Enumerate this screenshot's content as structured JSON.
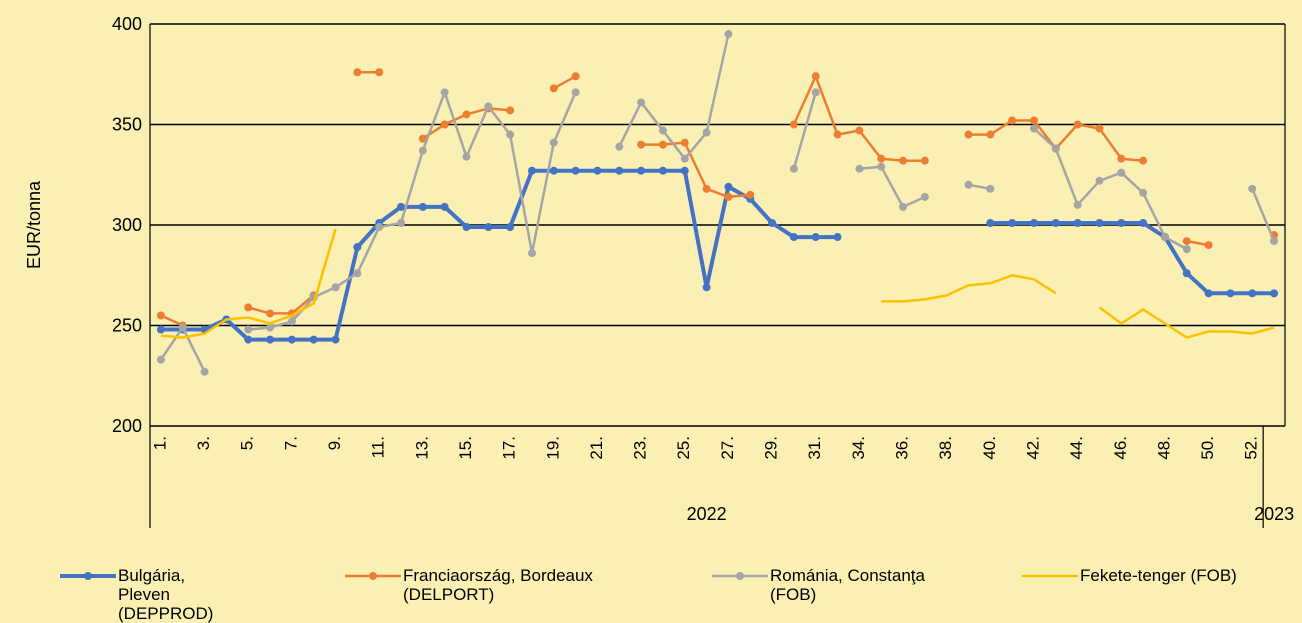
{
  "chart_data": {
    "type": "line",
    "y_label": "EUR/tonna",
    "categories": [
      "1.",
      null,
      "3.",
      null,
      "5.",
      null,
      "7.",
      null,
      "9.",
      null,
      "11.",
      null,
      "13.",
      null,
      "15.",
      null,
      "17.",
      null,
      "19.",
      null,
      "21.",
      null,
      "23.",
      null,
      "25.",
      null,
      "27.",
      null,
      "29.",
      null,
      "31.",
      null,
      "34.",
      null,
      "36.",
      null,
      "38.",
      null,
      "40.",
      null,
      "42.",
      null,
      "44.",
      null,
      "46.",
      null,
      "48.",
      null,
      "50.",
      null,
      "52.",
      null
    ],
    "groups": [
      {
        "label": "2022",
        "span": 51
      },
      {
        "label": "2023",
        "span": 1
      }
    ],
    "ylim": [
      200,
      400
    ],
    "yticks": [
      200,
      250,
      300,
      350,
      400
    ],
    "grid": true,
    "series": [
      {
        "name": "Bulgária, Pleven (DEPPROD)",
        "color": "#4472c4",
        "marker": true,
        "width": 4,
        "values": [
          248,
          248,
          248,
          253,
          243,
          243,
          243,
          243,
          243,
          289,
          301,
          309,
          309,
          309,
          299,
          299,
          299,
          327,
          327,
          327,
          327,
          327,
          327,
          327,
          327,
          269,
          319,
          313,
          301,
          294,
          294,
          294,
          null,
          null,
          null,
          null,
          null,
          null,
          301,
          301,
          301,
          301,
          301,
          301,
          301,
          301,
          294,
          276,
          266,
          266,
          266,
          266
        ]
      },
      {
        "name": "Franciaország, Bordeaux (DELPORT)",
        "color": "#ed7d31",
        "marker": true,
        "width": 2.5,
        "values": [
          255,
          250,
          null,
          null,
          259,
          256,
          256,
          265,
          null,
          376,
          376,
          null,
          343,
          350,
          355,
          358,
          357,
          null,
          368,
          374,
          null,
          null,
          340,
          340,
          341,
          318,
          314,
          315,
          null,
          350,
          374,
          345,
          347,
          333,
          332,
          332,
          null,
          345,
          345,
          352,
          352,
          338,
          350,
          348,
          333,
          332,
          null,
          292,
          290,
          null,
          null,
          295
        ]
      },
      {
        "name": "Románia, Constanţa (FOB)",
        "color": "#a5a5a5",
        "marker": true,
        "width": 2.5,
        "values": [
          233,
          249,
          227,
          null,
          248,
          249,
          252,
          264,
          269,
          276,
          299,
          301,
          337,
          366,
          334,
          359,
          345,
          286,
          341,
          366,
          null,
          339,
          361,
          347,
          333,
          346,
          395,
          null,
          null,
          328,
          366,
          null,
          328,
          329,
          309,
          314,
          null,
          320,
          318,
          null,
          348,
          338,
          310,
          322,
          326,
          316,
          294,
          288,
          null,
          null,
          318,
          292
        ]
      },
      {
        "name": "Fekete-tenger (FOB)",
        "color": "#ffc000",
        "marker": false,
        "width": 2.5,
        "values": [
          245,
          244,
          246,
          253,
          254,
          251,
          255,
          261,
          298,
          null,
          null,
          null,
          null,
          null,
          null,
          null,
          null,
          null,
          null,
          null,
          null,
          null,
          null,
          null,
          null,
          null,
          null,
          null,
          null,
          null,
          null,
          null,
          null,
          262,
          262,
          263,
          265,
          270,
          271,
          275,
          273,
          266,
          null,
          259,
          251,
          258,
          251,
          244,
          247,
          247,
          246,
          249
        ]
      }
    ]
  }
}
